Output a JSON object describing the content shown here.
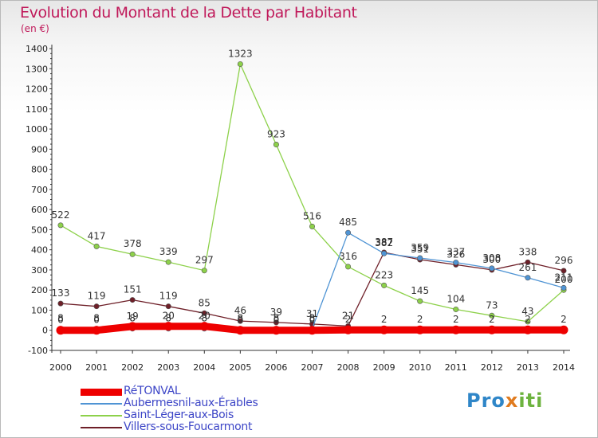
{
  "header": {
    "title": "Evolution du Montant de la Dette par Habitant",
    "subtitle": "(en €)"
  },
  "logo": {
    "part1": "Pro",
    "part2": "x",
    "part3": "iti"
  },
  "chart_data": {
    "type": "line",
    "title": "Evolution du Montant de la Dette par Habitant",
    "ylabel": "(en €)",
    "xlabel": "",
    "ylim": [
      -100,
      1400
    ],
    "yticks": [
      -100,
      0,
      100,
      200,
      300,
      400,
      500,
      600,
      700,
      800,
      900,
      1000,
      1100,
      1200,
      1300,
      1400
    ],
    "x": [
      "2000",
      "2001",
      "2002",
      "2003",
      "2004",
      "2005",
      "2006",
      "2007",
      "2008",
      "2009",
      "2010",
      "2011",
      "2012",
      "2013",
      "2014"
    ],
    "grid": false,
    "legend": "bottom-left",
    "series": [
      {
        "name": "RéTONVAL",
        "color": "#ee0000",
        "values": [
          0,
          0,
          19,
          20,
          20,
          0,
          0,
          0,
          2,
          2,
          2,
          2,
          2,
          2,
          2
        ]
      },
      {
        "name": "Aubermesnil-aux-Érables",
        "color": "#4f94d4",
        "values": [
          8,
          8,
          8,
          8,
          8,
          8,
          8,
          8,
          485,
          382,
          359,
          337,
          308,
          261,
          211
        ]
      },
      {
        "name": "Saint-Léger-aux-Bois",
        "color": "#8dd14a",
        "values": [
          522,
          417,
          378,
          339,
          297,
          1323,
          923,
          516,
          316,
          223,
          145,
          104,
          73,
          43,
          200
        ]
      },
      {
        "name": "Villers-sous-Foucarmont",
        "color": "#6e1f28",
        "values": [
          133,
          119,
          151,
          119,
          85,
          46,
          39,
          31,
          21,
          387,
          351,
          326,
          300,
          338,
          296
        ]
      }
    ]
  }
}
